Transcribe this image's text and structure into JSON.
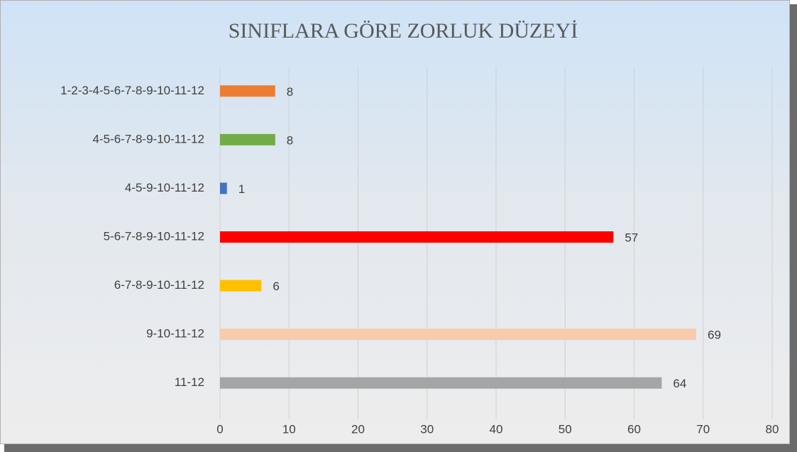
{
  "chart_data": {
    "type": "bar",
    "orientation": "horizontal",
    "title": "SINIFLARA GÖRE ZORLUK DÜZEYİ",
    "categories": [
      "1-2-3-4-5-6-7-8-9-10-11-12",
      "4-5-6-7-8-9-10-11-12",
      "4-5-9-10-11-12",
      "5-6-7-8-9-10-11-12",
      "6-7-8-9-10-11-12",
      "9-10-11-12",
      "11-12"
    ],
    "values": [
      8,
      8,
      1,
      57,
      6,
      69,
      64
    ],
    "colors": [
      "#ed7d31",
      "#70ad47",
      "#4472c4",
      "#ff0000",
      "#ffc000",
      "#f8cbad",
      "#a5a5a5"
    ],
    "xlim": [
      0,
      80
    ],
    "xticks": [
      0,
      10,
      20,
      30,
      40,
      50,
      60,
      70,
      80
    ],
    "grid": true
  }
}
